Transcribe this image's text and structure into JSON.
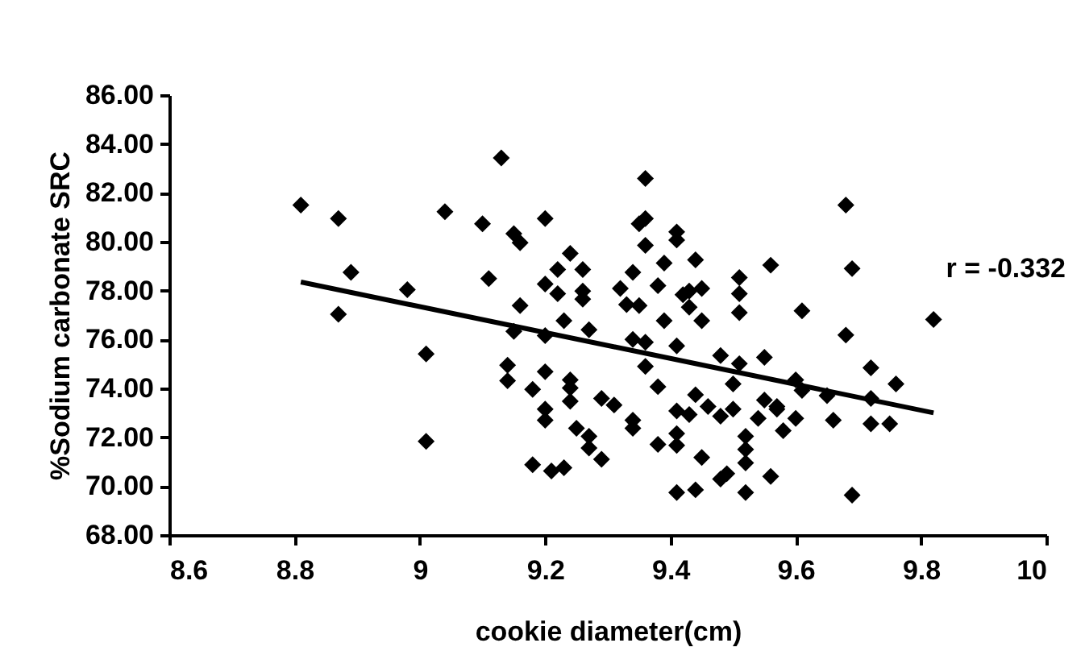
{
  "chart_data": {
    "type": "scatter",
    "xlabel": "cookie diameter(cm)",
    "ylabel": "%Sodium carbonate SRC",
    "xlim": [
      8.6,
      10
    ],
    "xticks": [
      8.6,
      8.8,
      9,
      9.2,
      9.4,
      9.6,
      9.8,
      10
    ],
    "ylim": [
      68,
      86
    ],
    "yticks": [
      {
        "value": 68,
        "label": "68.00"
      },
      {
        "value": 70,
        "label": "70.00"
      },
      {
        "value": 72,
        "label": "72.00"
      },
      {
        "value": 74,
        "label": "74.00"
      },
      {
        "value": 76,
        "label": "76.00"
      },
      {
        "value": 78,
        "label": "78.00"
      },
      {
        "value": 80,
        "label": "80.00"
      },
      {
        "value": 82,
        "label": "82.00"
      },
      {
        "value": 84,
        "label": "84.00"
      },
      {
        "value": 86,
        "label": "86.00"
      }
    ],
    "grid": false,
    "marker": "diamond",
    "annotations": [
      "r = -0.332"
    ],
    "series": [
      {
        "type": "scatter",
        "color": "#000000",
        "x": [
          8.81,
          8.87,
          8.89,
          8.87,
          8.98,
          9.01,
          9.01,
          9.04,
          9.1,
          9.13,
          9.15,
          9.16,
          9.11,
          9.16,
          9.15,
          9.14,
          9.14,
          9.18,
          9.2,
          9.2,
          9.2,
          9.18,
          9.21,
          9.2,
          9.2,
          9.2,
          9.24,
          9.22,
          9.26,
          9.22,
          9.26,
          9.26,
          9.23,
          9.27,
          9.24,
          9.24,
          9.24,
          9.29,
          9.31,
          9.25,
          9.27,
          9.27,
          9.29,
          9.23,
          9.36,
          9.36,
          9.35,
          9.36,
          9.41,
          9.41,
          9.39,
          9.44,
          9.34,
          9.32,
          9.33,
          9.35,
          9.38,
          9.42,
          9.43,
          9.45,
          9.43,
          9.45,
          9.39,
          9.51,
          9.51,
          9.51,
          9.56,
          9.34,
          9.36,
          9.41,
          9.36,
          9.48,
          9.51,
          9.55,
          9.5,
          9.38,
          9.44,
          9.41,
          9.43,
          9.46,
          9.48,
          9.5,
          9.55,
          9.57,
          9.54,
          9.58,
          9.34,
          9.34,
          9.38,
          9.41,
          9.41,
          9.45,
          9.52,
          9.52,
          9.52,
          9.48,
          9.49,
          9.41,
          9.44,
          9.52,
          9.56,
          9.68,
          9.69,
          9.61,
          9.82,
          9.68,
          9.72,
          9.76,
          9.6,
          9.61,
          9.65,
          9.72,
          9.57,
          9.6,
          9.66,
          9.72,
          9.75,
          9.69
        ],
        "values": [
          81.5,
          80.95,
          78.75,
          77.03,
          78.04,
          75.41,
          71.83,
          81.23,
          80.73,
          83.43,
          80.33,
          79.96,
          78.49,
          77.39,
          76.33,
          74.95,
          74.31,
          73.96,
          74.68,
          73.15,
          72.7,
          70.88,
          70.62,
          80.95,
          78.27,
          76.16,
          79.52,
          78.86,
          78.86,
          77.87,
          77.98,
          77.65,
          76.77,
          76.4,
          74.35,
          74.02,
          73.47,
          73.59,
          73.32,
          72.37,
          72.04,
          71.56,
          71.1,
          70.75,
          82.59,
          80.95,
          80.73,
          79.85,
          80.4,
          80.07,
          79.13,
          79.26,
          78.75,
          78.09,
          77.43,
          77.39,
          78.2,
          77.83,
          77.98,
          78.09,
          77.32,
          76.77,
          76.77,
          78.53,
          77.87,
          77.1,
          79.04,
          76.0,
          75.89,
          75.74,
          74.9,
          75.34,
          75.01,
          75.27,
          74.18,
          74.07,
          73.74,
          73.08,
          72.93,
          73.26,
          72.86,
          73.15,
          73.52,
          73.26,
          72.77,
          72.27,
          72.7,
          72.37,
          71.71,
          72.15,
          71.67,
          71.17,
          72.04,
          71.5,
          70.95,
          70.29,
          70.51,
          69.74,
          69.85,
          69.74,
          70.4,
          81.5,
          78.9,
          77.17,
          76.82,
          76.18,
          74.84,
          74.18,
          74.35,
          73.92,
          73.7,
          73.59,
          73.15,
          72.77,
          72.7,
          72.55,
          72.55,
          69.63
        ]
      },
      {
        "type": "line",
        "marker": "none",
        "color": "#000000",
        "x": [
          8.81,
          9.82
        ],
        "values": [
          78.35,
          73.0
        ]
      }
    ]
  }
}
